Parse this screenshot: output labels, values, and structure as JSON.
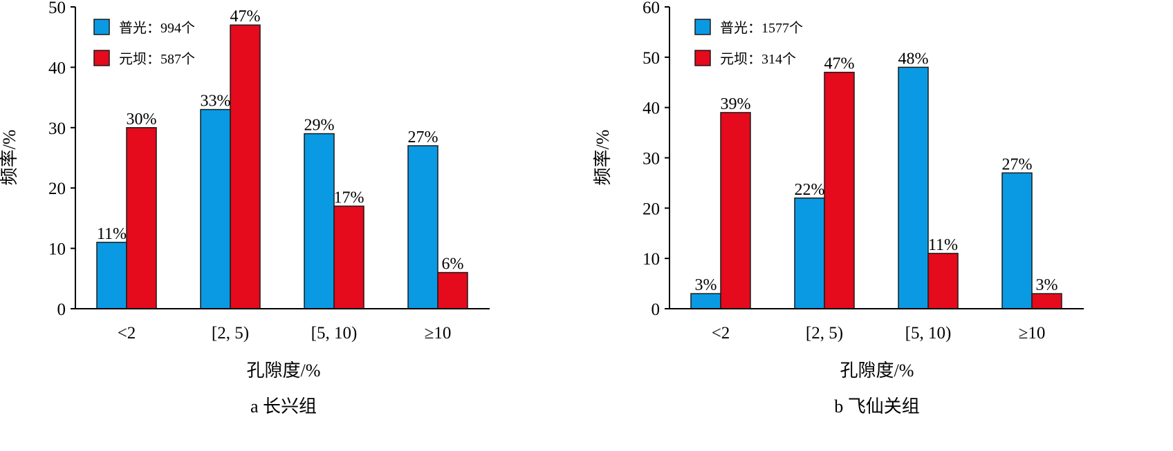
{
  "chart_data": [
    {
      "type": "bar",
      "caption": "a  长兴组",
      "xlabel": "孔隙度/%",
      "ylabel": "频率/%",
      "ylim": [
        0,
        50
      ],
      "yticks": [
        0,
        10,
        20,
        30,
        40,
        50
      ],
      "categories": [
        "<2",
        "[2, 5)",
        "[5, 10)",
        "≥10"
      ],
      "series": [
        {
          "name": "普光：994个",
          "color": "#0a9ae3",
          "values": [
            11,
            33,
            29,
            27
          ],
          "labels": [
            "11%",
            "33%",
            "29%",
            "27%"
          ]
        },
        {
          "name": "元坝：587个",
          "color": "#e50a1c",
          "values": [
            30,
            47,
            17,
            6
          ],
          "labels": [
            "30%",
            "47%",
            "17%",
            "6%"
          ]
        }
      ],
      "legend": "top-left",
      "grid": false
    },
    {
      "type": "bar",
      "caption": "b  飞仙关组",
      "xlabel": "孔隙度/%",
      "ylabel": "频率/%",
      "ylim": [
        0,
        60
      ],
      "yticks": [
        0,
        10,
        20,
        30,
        40,
        50,
        60
      ],
      "categories": [
        "<2",
        "[2, 5)",
        "[5, 10)",
        "≥10"
      ],
      "series": [
        {
          "name": "普光：1577个",
          "color": "#0a9ae3",
          "values": [
            3,
            22,
            48,
            27
          ],
          "labels": [
            "3%",
            "22%",
            "48%",
            "27%"
          ]
        },
        {
          "name": "元坝：314个",
          "color": "#e50a1c",
          "values": [
            39,
            47,
            11,
            3
          ],
          "labels": [
            "39%",
            "47%",
            "11%",
            "3%"
          ]
        }
      ],
      "legend": "top-left",
      "grid": false
    }
  ]
}
